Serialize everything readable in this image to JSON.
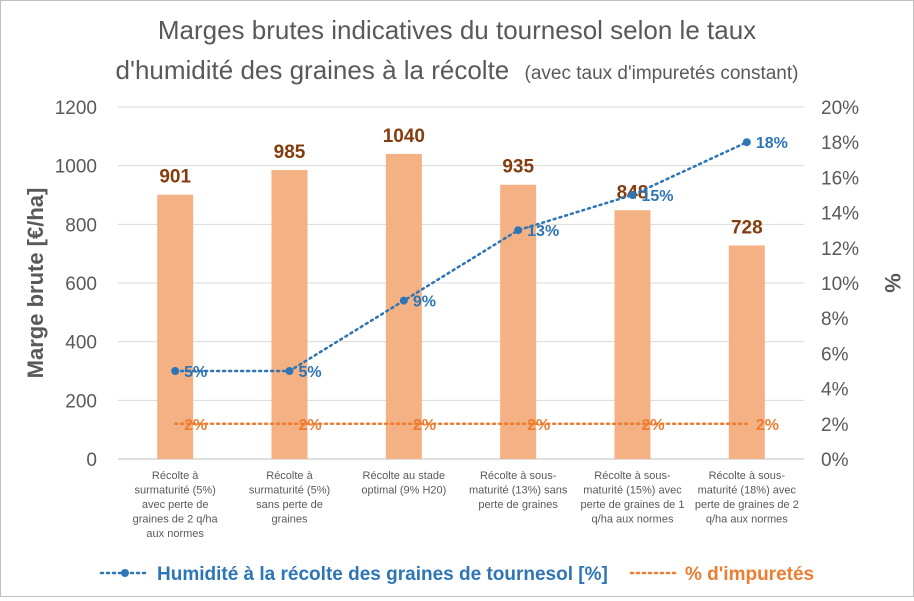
{
  "chart_data": {
    "type": "bar",
    "title_main": "Marges brutes indicatives du tournesol selon le taux",
    "title_line2": "d'humidité des graines à la récolte",
    "title_note": "(avec taux d'impuretés constant)",
    "ylabel": "Marge brute [€/ha]",
    "y2label": "%",
    "ylim": [
      0,
      1200
    ],
    "y_ticks": [
      "0",
      "200",
      "400",
      "600",
      "800",
      "1000",
      "1200"
    ],
    "y2lim": [
      0,
      20
    ],
    "y2_ticks": [
      "0%",
      "2%",
      "4%",
      "6%",
      "8%",
      "10%",
      "12%",
      "14%",
      "16%",
      "18%",
      "20%"
    ],
    "categories": [
      [
        "Récolte à",
        "surmaturité (5%)",
        "avec perte de",
        "graines de 2 q/ha",
        "aux normes"
      ],
      [
        "Récolte à",
        "surmaturité (5%)",
        "sans perte de",
        "graines"
      ],
      [
        "Récolte au stade",
        "optimal (9% H20)"
      ],
      [
        "Récolte à sous-",
        "maturité (13%) sans",
        "perte de graines"
      ],
      [
        "Récolte à sous-",
        "maturité (15%) avec",
        "perte de graines de 1",
        "q/ha aux normes"
      ],
      [
        "Récolte à sous-",
        "maturité (18%) avec",
        "perte de graines de 2",
        "q/ha aux normes"
      ]
    ],
    "bar_values": [
      901,
      985,
      1040,
      935,
      848,
      728
    ],
    "bar_labels": [
      "901",
      "985",
      "1040",
      "935",
      "848",
      "728"
    ],
    "series": [
      {
        "name": "Humidité à la récolte des graines de tournesol [%]",
        "values": [
          5,
          5,
          9,
          13,
          15,
          18
        ],
        "labels": [
          "5%",
          "5%",
          "9%",
          "13%",
          "15%",
          "18%"
        ],
        "color": "#2e75b6"
      },
      {
        "name": "% d'impuretés",
        "values": [
          2,
          2,
          2,
          2,
          2,
          2
        ],
        "labels": [
          "2%",
          "2%",
          "2%",
          "2%",
          "2%",
          "2%"
        ],
        "color": "#ed7d31"
      }
    ],
    "colors": {
      "bar": "#f4b183",
      "bar_label": "#843c0c",
      "grid": "#d9d9d9",
      "axis_text": "#595959"
    },
    "grid": true,
    "legend_position": "bottom"
  }
}
